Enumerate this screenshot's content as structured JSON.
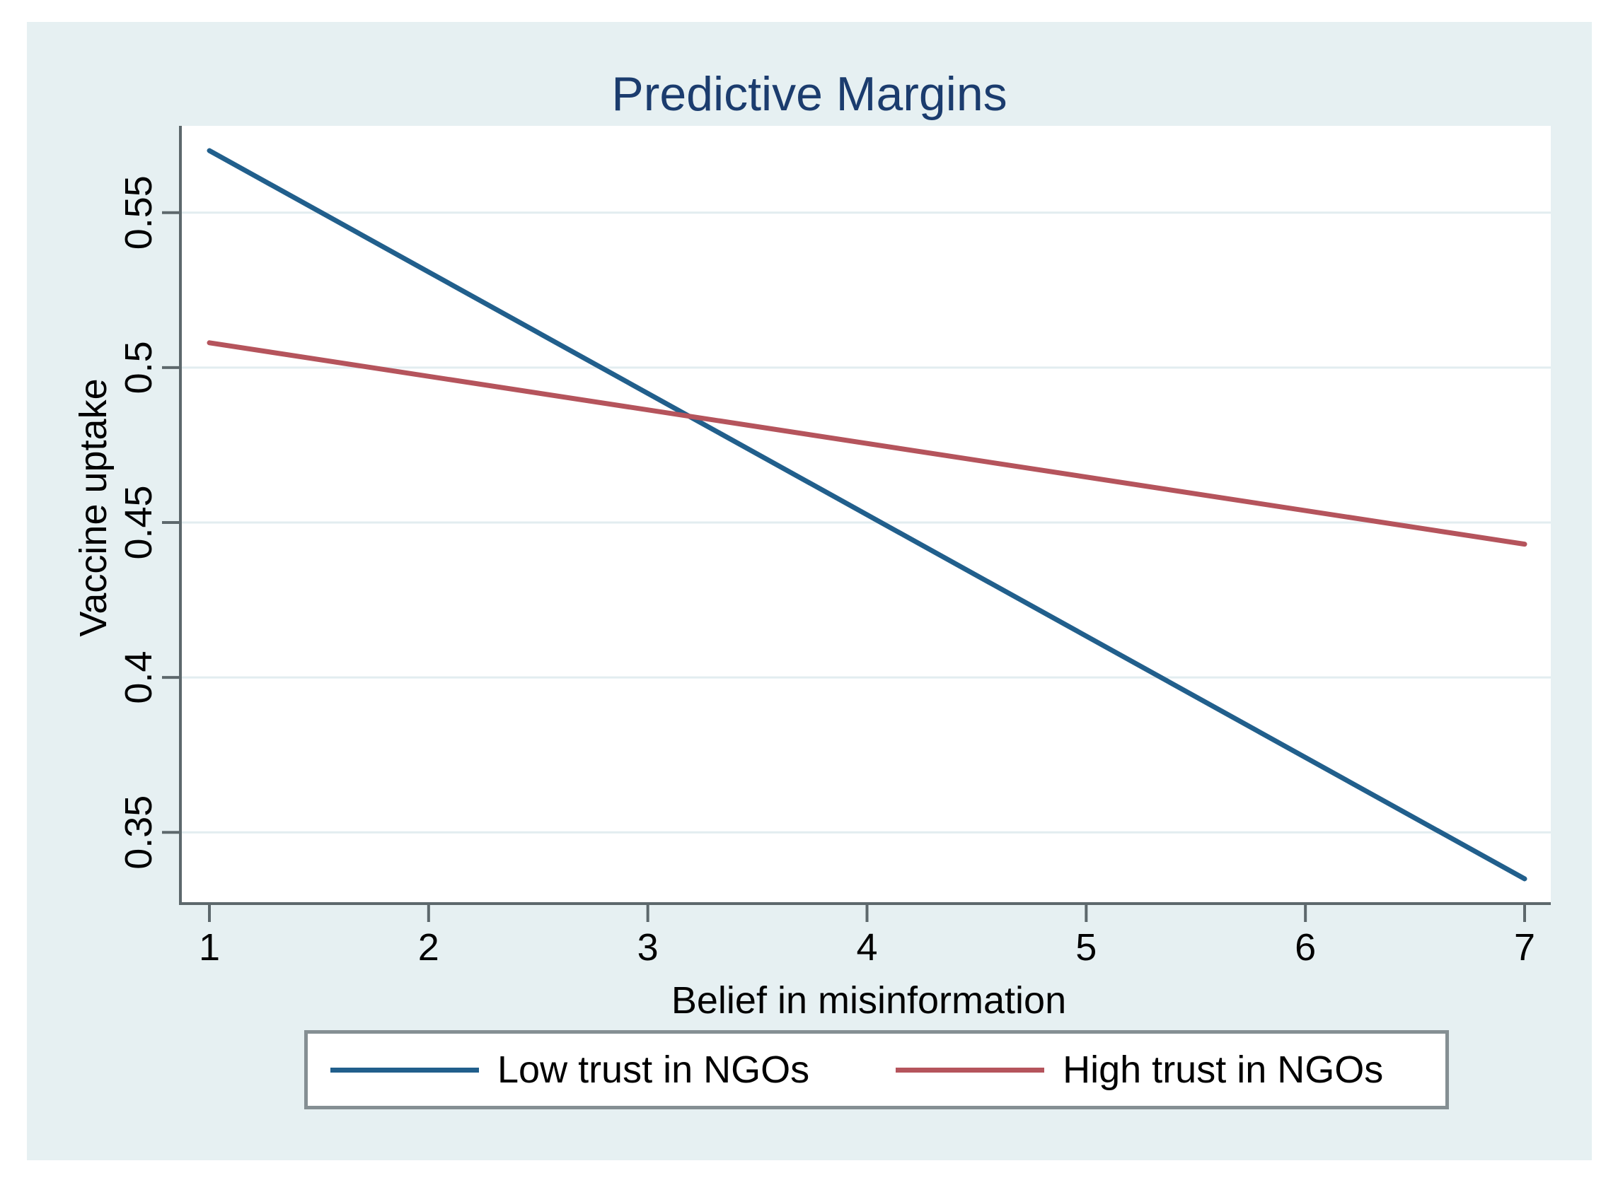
{
  "window": {
    "background": "#ffffff",
    "panel_color": "#e6f0f2"
  },
  "chart_data": {
    "type": "line",
    "title": "Predictive Margins",
    "xlabel": "Belief in misinformation",
    "ylabel": "Vaccine uptake",
    "xlim": [
      1,
      7
    ],
    "ylim": [
      0.327,
      0.578
    ],
    "xticks": [
      1,
      2,
      3,
      4,
      5,
      6,
      7
    ],
    "xtick_labels": [
      "1",
      "2",
      "3",
      "4",
      "5",
      "6",
      "7"
    ],
    "yticks": [
      0.35,
      0.4,
      0.45,
      0.5,
      0.55
    ],
    "ytick_labels": [
      "0.35",
      "0.4",
      "0.45",
      "0.5",
      "0.55"
    ],
    "grid": true,
    "grid_orientation": "horizontal",
    "legend_position": "bottom",
    "series": [
      {
        "name": "Low trust in NGOs",
        "color": "#215f8c",
        "x": [
          1,
          7
        ],
        "y": [
          0.57,
          0.335
        ]
      },
      {
        "name": "High trust in NGOs",
        "color": "#b5545c",
        "x": [
          1,
          7
        ],
        "y": [
          0.508,
          0.443
        ]
      }
    ],
    "colors": {
      "plot_background": "#ffffff",
      "grid": "#e2edf0",
      "axis": "#5d686c",
      "title": "#1b3c6e",
      "tick_label": "#000000"
    }
  },
  "legend": {
    "items": [
      {
        "label": "Low trust in NGOs",
        "color": "#215f8c"
      },
      {
        "label": "High trust in NGOs",
        "color": "#b5545c"
      }
    ]
  }
}
